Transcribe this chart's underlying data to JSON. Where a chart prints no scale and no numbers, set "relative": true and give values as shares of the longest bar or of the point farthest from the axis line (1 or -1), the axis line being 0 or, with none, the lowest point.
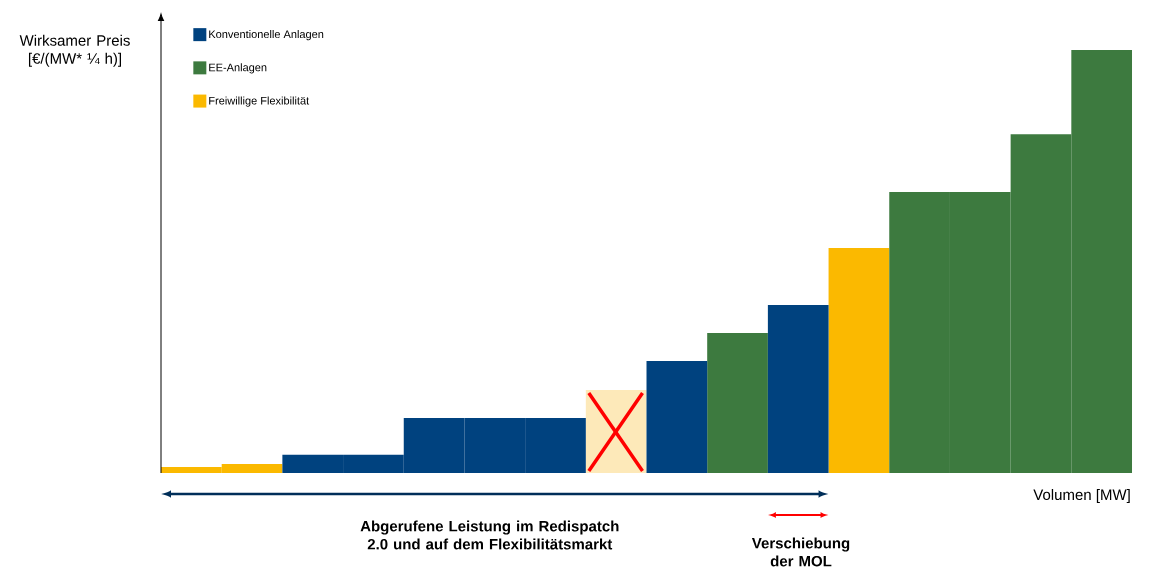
{
  "chart_data": {
    "type": "bar",
    "relative": true,
    "stacked": true,
    "categories": [
      null,
      null,
      null,
      null,
      null,
      null,
      null,
      null,
      null,
      null,
      null,
      null,
      null,
      null,
      null,
      null
    ],
    "xlabel": "Volumen [MW]",
    "ylabel": "Wirksamer Preis [€/(MW* ¼ h)]",
    "legend": "top left",
    "series": [
      {
        "name": "Konventionelle Anlagen",
        "color": "#00427f",
        "values": [
          0,
          0,
          0.043,
          0.043,
          0.13,
          0.13,
          0.13,
          0,
          0.265,
          0,
          0.397,
          0,
          0,
          0,
          0,
          0
        ]
      },
      {
        "name": "EE-Anlagen",
        "color": "#3d7a3f",
        "values": [
          0,
          0,
          0,
          0,
          0,
          0,
          0,
          0,
          0,
          0.331,
          0,
          0,
          0.664,
          0.664,
          0.801,
          1
        ]
      },
      {
        "name": "Freiwillige Flexibilität",
        "color": "#fbb900",
        "values": [
          0.014,
          0.021,
          0,
          0,
          0,
          0,
          0,
          0,
          0,
          0,
          0,
          0.532,
          0,
          0,
          0,
          0
        ]
      },
      {
        "color": "#fde9b9",
        "values": [
          0,
          0,
          0,
          0,
          0,
          0,
          0,
          0.196,
          0,
          0,
          0,
          0,
          0,
          0,
          0,
          0
        ]
      }
    ],
    "annotations": [
      "Abgerufene Leistung im Redispatch 2.0 und auf dem Flexibilitätsmarkt",
      "Verschiebung der MOL"
    ]
  }
}
